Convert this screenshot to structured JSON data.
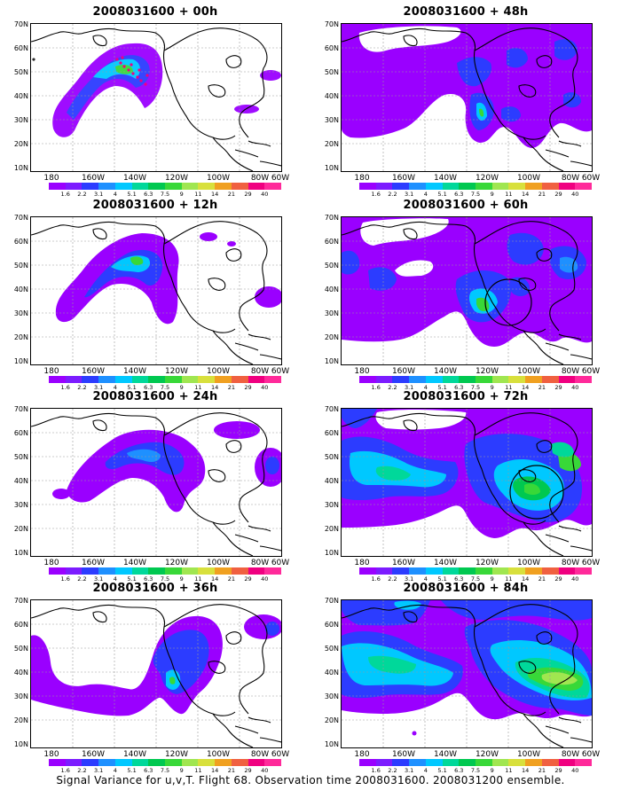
{
  "figure": {
    "caption": "Signal Variance for u,v,T. Flight 68. Observation time 2008031600. 2008031200 ensemble."
  },
  "axes": {
    "lat_labels": [
      "70N",
      "60N",
      "50N",
      "40N",
      "30N",
      "20N",
      "10N"
    ],
    "lon_labels": [
      "180",
      "160W",
      "140W",
      "120W",
      "100W",
      "80W",
      "60W"
    ]
  },
  "colorbar": {
    "levels": [
      "1.6",
      "2.2",
      "3.1",
      "4",
      "5.1",
      "6.3",
      "7.5",
      "9",
      "11",
      "14",
      "21",
      "29",
      "40"
    ],
    "colors": [
      "#9a00ff",
      "#7c1cff",
      "#2c3cff",
      "#1e90ff",
      "#00c8ff",
      "#00d89a",
      "#00c850",
      "#38d838",
      "#a0e650",
      "#d8e03c",
      "#f0a020",
      "#f06040",
      "#f00080",
      "#ff2a9a"
    ]
  },
  "panels": [
    {
      "title": "2008031600 + 00h",
      "lead_hours": 0,
      "signal_level": 1,
      "marker_track": true,
      "circle": false
    },
    {
      "title": "2008031600 + 12h",
      "lead_hours": 12,
      "signal_level": 2,
      "marker_track": false,
      "circle": false
    },
    {
      "title": "2008031600 + 24h",
      "lead_hours": 24,
      "signal_level": 2,
      "marker_track": false,
      "circle": false
    },
    {
      "title": "2008031600 + 36h",
      "lead_hours": 36,
      "signal_level": 3,
      "marker_track": false,
      "circle": false
    },
    {
      "title": "2008031600 + 48h",
      "lead_hours": 48,
      "signal_level": 3,
      "marker_track": false,
      "circle": false
    },
    {
      "title": "2008031600 + 60h",
      "lead_hours": 60,
      "signal_level": 4,
      "marker_track": false,
      "circle": true
    },
    {
      "title": "2008031600 + 72h",
      "lead_hours": 72,
      "signal_level": 5,
      "marker_track": false,
      "circle": true
    },
    {
      "title": "2008031600 + 84h",
      "lead_hours": 84,
      "signal_level": 6,
      "marker_track": false,
      "circle": false
    }
  ]
}
